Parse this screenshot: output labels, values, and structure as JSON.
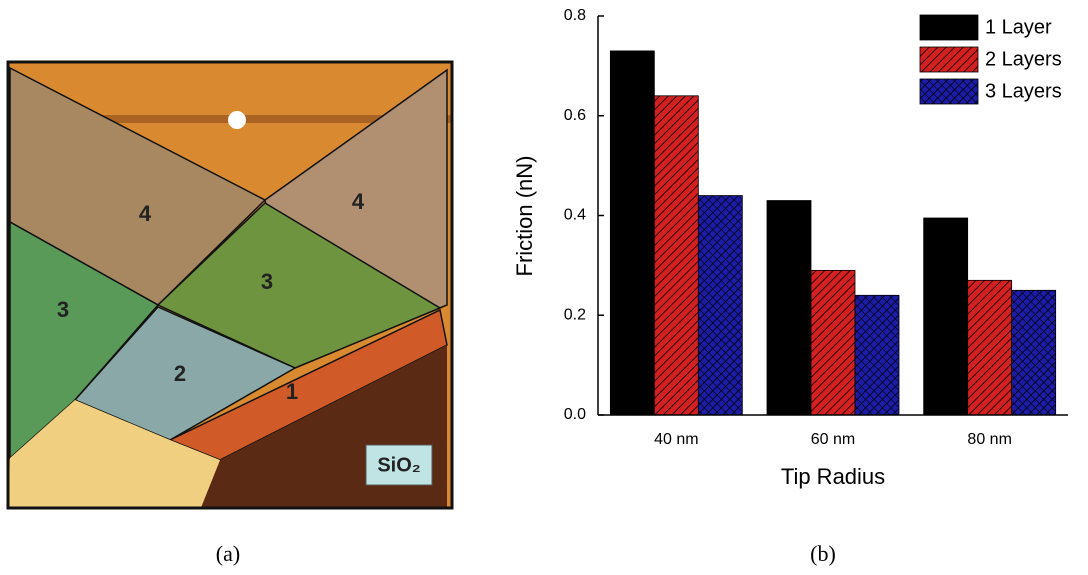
{
  "panel_a": {
    "labels": [
      "4",
      "4",
      "3",
      "3",
      "2",
      "1"
    ],
    "substrate": "SiO₂",
    "caption": "(a)"
  },
  "chart_data": {
    "type": "bar",
    "caption": "(b)",
    "xlabel": "Tip Radius",
    "ylabel": "Friction (nN)",
    "categories": [
      "40 nm",
      "60 nm",
      "80 nm"
    ],
    "series": [
      {
        "name": "1 Layer",
        "color": "#000000",
        "values": [
          0.73,
          0.43,
          0.395
        ]
      },
      {
        "name": "2 Layers",
        "color": "#d42020",
        "values": [
          0.64,
          0.29,
          0.27
        ]
      },
      {
        "name": "3 Layers",
        "color": "#1c1ca8",
        "values": [
          0.44,
          0.24,
          0.25
        ]
      }
    ],
    "ylim": [
      0,
      0.8
    ],
    "yticks": [
      {
        "value": 0,
        "label": "0.0"
      },
      0.2,
      0.4,
      0.6,
      0.8
    ],
    "legend": "upper right"
  }
}
